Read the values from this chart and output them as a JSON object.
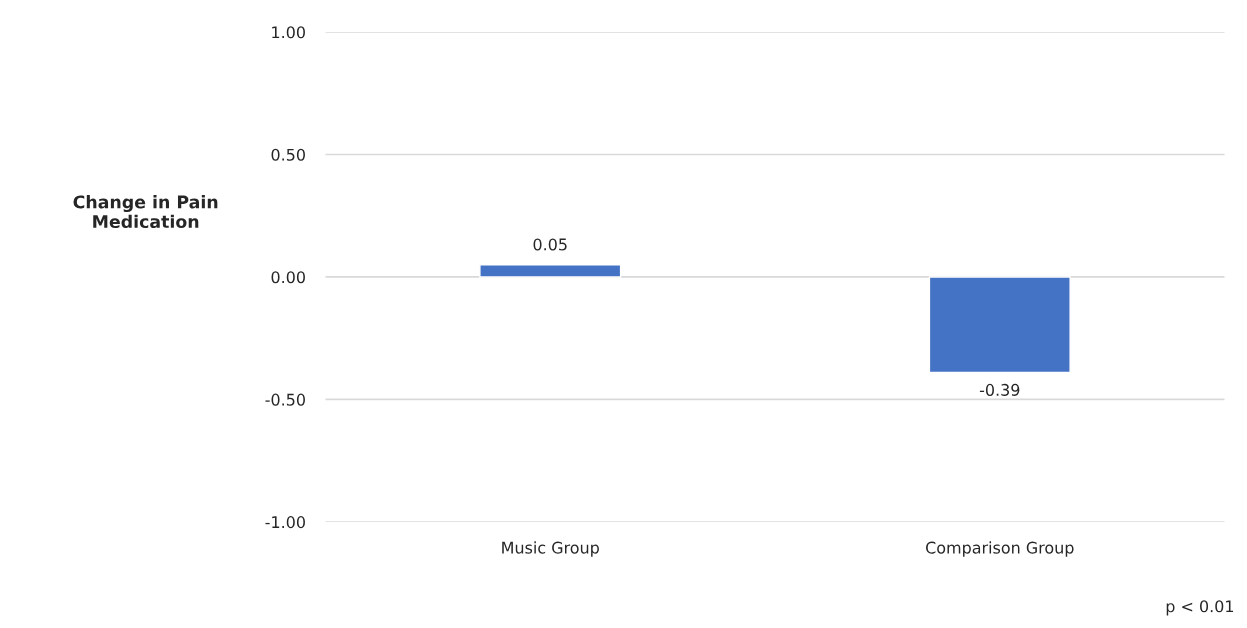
{
  "chart_data": {
    "type": "bar",
    "ylabel": "Change in Pain\nMedication",
    "categories": [
      "Music Group",
      "Comparison Group"
    ],
    "values": [
      0.05,
      -0.39
    ],
    "color": "#4472c4",
    "ylim": [
      -1.0,
      1.0
    ],
    "yticks": [
      {
        "value": -1.0,
        "label": "-1.00"
      },
      {
        "value": -0.5,
        "label": "-0.50"
      },
      {
        "value": 0.0,
        "label": "0.00"
      },
      {
        "value": 0.5,
        "label": "0.50"
      },
      {
        "value": 1.0,
        "label": "1.00"
      }
    ],
    "grid": "y",
    "data_labels": true,
    "annotations": [
      "p < 0.01"
    ]
  }
}
